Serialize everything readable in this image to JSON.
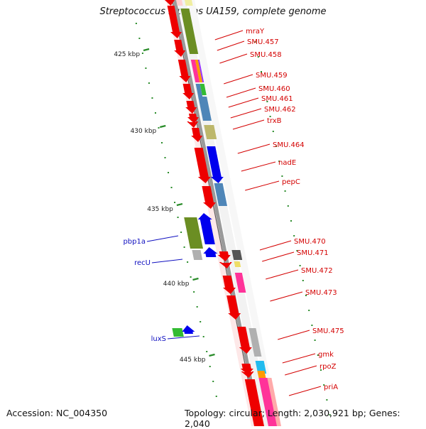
{
  "title": "Streptococcus mutans UA159, complete genome",
  "footer": {
    "accession": "Accession: NC_004350",
    "summary": "Topology: circular; Length: 2,030,921 bp; Genes: 2,040"
  },
  "colors": {
    "backbone": "#9a9a9a",
    "right_label": "#d40000",
    "left_label": "#1010c0",
    "cds": "#ee0000",
    "tick": "#2a8c2a",
    "olive": "#6b8e23",
    "steel": "#4f86b8",
    "blue": "#0000ee",
    "magenta": "#ff3399",
    "khaki": "#bdb76b",
    "grey": "#b0b0b0",
    "dark": "#555555",
    "green": "#33bb33",
    "cyan": "#22bbee",
    "orange": "#ff9900"
  },
  "scale": {
    "unit": "kbp",
    "labels": [
      "425 kbp",
      "430 kbp",
      "435 kbp",
      "440 kbp",
      "445 kbp"
    ]
  },
  "genes_right": [
    "mraY",
    "SMU.457",
    "SMU.458",
    "SMU.459",
    "SMU.460",
    "SMU.461",
    "SMU.462",
    "trxB",
    "SMU.464",
    "nadE",
    "pepC",
    "SMU.470",
    "SMU.471",
    "SMU.472",
    "SMU.473",
    "SMU.475",
    "gmk",
    "rpoZ",
    "priA"
  ],
  "genes_left": [
    "pbp1a",
    "recU",
    "luxS"
  ]
}
